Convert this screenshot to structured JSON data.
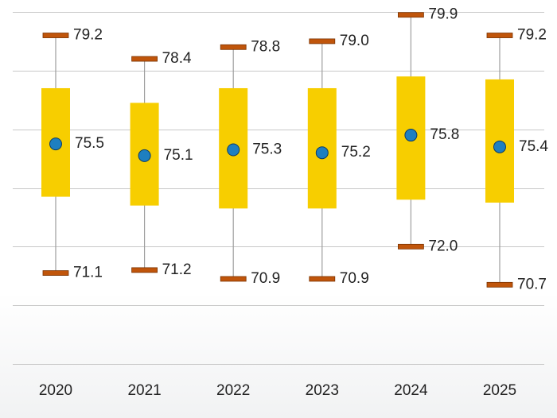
{
  "chart_data": {
    "type": "boxplot",
    "title": "",
    "xlabel": "",
    "ylabel": "",
    "categories": [
      "2020",
      "2021",
      "2022",
      "2023",
      "2024",
      "2025"
    ],
    "ylim": [
      68.0,
      80.0
    ],
    "grid": true,
    "series": [
      {
        "name": "2020",
        "max": 79.2,
        "min": 71.1,
        "mean": 75.5,
        "q3": 77.4,
        "q1": 73.7
      },
      {
        "name": "2021",
        "max": 78.4,
        "min": 71.2,
        "mean": 75.1,
        "q3": 76.9,
        "q1": 73.4
      },
      {
        "name": "2022",
        "max": 78.8,
        "min": 70.9,
        "mean": 75.3,
        "q3": 77.4,
        "q1": 73.3
      },
      {
        "name": "2023",
        "max": 79.0,
        "min": 70.9,
        "mean": 75.2,
        "q3": 77.4,
        "q1": 73.3
      },
      {
        "name": "2024",
        "max": 79.9,
        "min": 72.0,
        "mean": 75.8,
        "q3": 77.8,
        "q1": 73.6
      },
      {
        "name": "2025",
        "max": 79.2,
        "min": 70.7,
        "mean": 75.4,
        "q3": 77.7,
        "q1": 73.5
      }
    ],
    "max_labels": [
      "79.2",
      "78.4",
      "78.8",
      "79.0",
      "79.9",
      "79.2"
    ],
    "min_labels": [
      "71.1",
      "71.2",
      "70.9",
      "70.9",
      "72.0",
      "70.7"
    ],
    "mean_labels": [
      "75.5",
      "75.1",
      "75.3",
      "75.2",
      "75.8",
      "75.4"
    ],
    "colors": {
      "box": "#f7ce00",
      "mean_marker": "#1e7fc0",
      "mean_marker_stroke": "#0d3c63",
      "whisker_cap": "#c0550b",
      "whisker_cap_stroke": "#7a3200",
      "whisker_line": "#9e9e9e",
      "grid": "#c8c8c8"
    }
  }
}
